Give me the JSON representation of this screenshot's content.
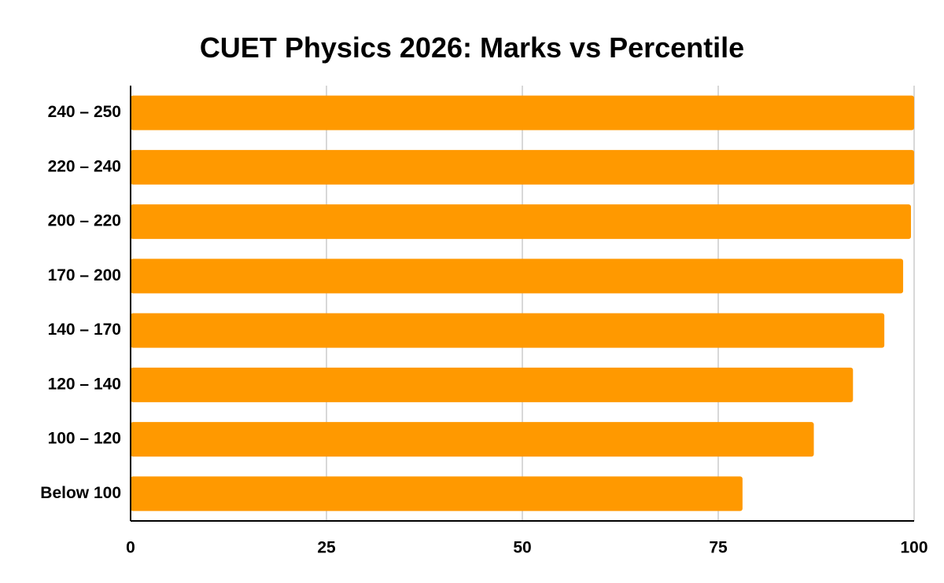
{
  "chart_data": {
    "type": "bar",
    "orientation": "horizontal",
    "title": "CUET Physics 2026: Marks vs Percentile",
    "xlabel": "",
    "ylabel": "",
    "categories": [
      "240 – 250",
      "220 – 240",
      "200 – 220",
      "170 – 200",
      "140 – 170",
      "120 – 140",
      "100 – 120",
      "Below 100"
    ],
    "values": [
      100,
      100,
      99.6,
      98.6,
      96.2,
      92.2,
      87.2,
      78.1
    ],
    "xlim": [
      0,
      100
    ],
    "xticks": [
      "0",
      "25",
      "50",
      "75",
      "100"
    ],
    "xtick_values": [
      0,
      25,
      50,
      75,
      100
    ],
    "grid": "vertical",
    "legend": "none",
    "bar_color": "#ff9900",
    "grid_color": "#cccccc",
    "axis_color": "#000000"
  }
}
